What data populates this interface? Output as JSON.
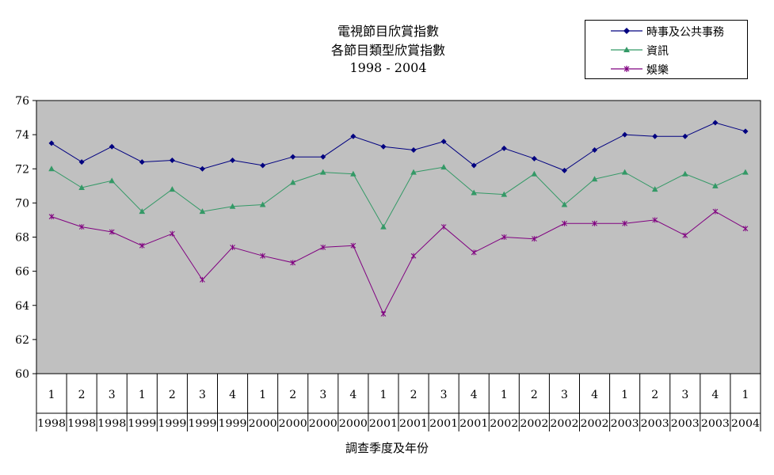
{
  "title": {
    "line1": "電視節目欣賞指數",
    "line2": "各節目類型欣賞指數",
    "line3": "1998 - 2004"
  },
  "x_axis_title": "調查季度及年份",
  "legend": [
    {
      "label": "時事及公共事務",
      "marker": "diamond",
      "color": "#000080"
    },
    {
      "label": "資訊",
      "marker": "triangle",
      "color": "#339966"
    },
    {
      "label": "娛樂",
      "marker": "star",
      "color": "#800080"
    }
  ],
  "colors": {
    "plot_background": "#c0c0c0",
    "axis": "#000000"
  },
  "chart_data": {
    "type": "line",
    "title": "電視節目欣賞指數 各節目類型欣賞指數 1998 - 2004",
    "xlabel": "調查季度及年份",
    "ylabel": "",
    "ylim": [
      60,
      76
    ],
    "yticks": [
      60,
      62,
      64,
      66,
      68,
      70,
      72,
      74,
      76
    ],
    "grid": false,
    "legend_position": "top-right",
    "categories": [
      {
        "quarter": "1",
        "year": "1998"
      },
      {
        "quarter": "2",
        "year": "1998"
      },
      {
        "quarter": "3",
        "year": "1998"
      },
      {
        "quarter": "1",
        "year": "1999"
      },
      {
        "quarter": "2",
        "year": "1999"
      },
      {
        "quarter": "3",
        "year": "1999"
      },
      {
        "quarter": "4",
        "year": "1999"
      },
      {
        "quarter": "1",
        "year": "2000"
      },
      {
        "quarter": "2",
        "year": "2000"
      },
      {
        "quarter": "3",
        "year": "2000"
      },
      {
        "quarter": "4",
        "year": "2000"
      },
      {
        "quarter": "1",
        "year": "2001"
      },
      {
        "quarter": "2",
        "year": "2001"
      },
      {
        "quarter": "3",
        "year": "2001"
      },
      {
        "quarter": "4",
        "year": "2001"
      },
      {
        "quarter": "1",
        "year": "2002"
      },
      {
        "quarter": "2",
        "year": "2002"
      },
      {
        "quarter": "3",
        "year": "2002"
      },
      {
        "quarter": "4",
        "year": "2002"
      },
      {
        "quarter": "1",
        "year": "2003"
      },
      {
        "quarter": "2",
        "year": "2003"
      },
      {
        "quarter": "3",
        "year": "2003"
      },
      {
        "quarter": "4",
        "year": "2003"
      },
      {
        "quarter": "1",
        "year": "2004"
      }
    ],
    "series": [
      {
        "name": "時事及公共事務",
        "color": "#000080",
        "marker": "diamond",
        "values": [
          73.5,
          72.4,
          73.3,
          72.4,
          72.5,
          72.0,
          72.5,
          72.2,
          72.7,
          72.7,
          73.9,
          73.3,
          73.1,
          73.6,
          72.2,
          73.2,
          72.6,
          71.9,
          73.1,
          74.0,
          73.9,
          73.9,
          74.7,
          74.2
        ]
      },
      {
        "name": "資訊",
        "color": "#339966",
        "marker": "triangle",
        "values": [
          72.0,
          70.9,
          71.3,
          69.5,
          70.8,
          69.5,
          69.8,
          69.9,
          71.2,
          71.8,
          71.7,
          68.6,
          71.8,
          72.1,
          70.6,
          70.5,
          71.7,
          69.9,
          71.4,
          71.8,
          70.8,
          71.7,
          71.0,
          71.8
        ]
      },
      {
        "name": "娛樂",
        "color": "#800080",
        "marker": "star",
        "values": [
          69.2,
          68.6,
          68.3,
          67.5,
          68.2,
          65.5,
          67.4,
          66.9,
          66.5,
          67.4,
          67.5,
          63.5,
          66.9,
          68.6,
          67.1,
          68.0,
          67.9,
          68.8,
          68.8,
          68.8,
          69.0,
          68.1,
          69.5,
          68.5
        ]
      }
    ]
  }
}
